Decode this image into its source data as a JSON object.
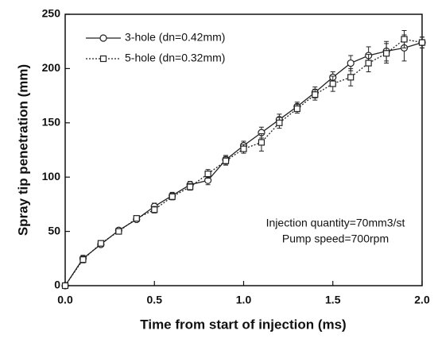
{
  "chart_data": {
    "type": "line",
    "xlabel": "Time from start of injection (ms)",
    "ylabel": "Spray tip penetration (mm)",
    "x": [
      0,
      0.1,
      0.2,
      0.3,
      0.4,
      0.5,
      0.6,
      0.7,
      0.8,
      0.9,
      1.0,
      1.1,
      1.2,
      1.3,
      1.4,
      1.5,
      1.6,
      1.7,
      1.8,
      1.9,
      2.0
    ],
    "series": [
      {
        "name": "3-hole (dn=0.42mm)",
        "color": "#222222",
        "marker": "circle",
        "linestyle": "solid",
        "values": [
          0,
          25,
          38,
          51,
          61,
          73,
          83,
          93,
          97,
          116,
          129,
          141,
          153,
          165,
          178,
          192,
          205,
          212,
          216,
          219,
          224
        ],
        "errors": [
          0,
          3,
          2,
          2,
          2,
          3,
          3,
          3,
          4,
          4,
          4,
          5,
          5,
          4,
          5,
          5,
          7,
          8,
          9,
          12,
          5
        ]
      },
      {
        "name": "5-hole (dn=0.32mm)",
        "color": "#222222",
        "marker": "square",
        "linestyle": "dotted",
        "values": [
          0,
          24,
          39,
          50,
          62,
          70,
          82,
          91,
          103,
          115,
          126,
          132,
          150,
          163,
          176,
          186,
          192,
          205,
          214,
          227,
          224
        ],
        "errors": [
          0,
          3,
          2,
          2,
          2,
          3,
          3,
          3,
          4,
          4,
          4,
          8,
          5,
          4,
          5,
          7,
          8,
          8,
          9,
          8,
          5
        ]
      }
    ],
    "annotations": [
      "Injection quantity=70mm3/st",
      "Pump speed=700rpm"
    ],
    "xlim": [
      0,
      2.0
    ],
    "xticks": [
      {
        "value": 0,
        "label": "0.0"
      },
      0.5,
      {
        "value": 1.0,
        "label": "1.0"
      },
      1.5,
      {
        "value": 2.0,
        "label": "2.0"
      }
    ],
    "ylim": [
      0,
      250
    ],
    "yticks": [
      0,
      50,
      100,
      150,
      200,
      250
    ],
    "legend": "upper left",
    "grid": false
  }
}
